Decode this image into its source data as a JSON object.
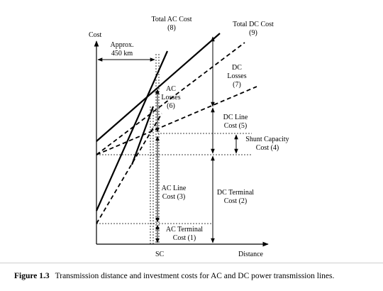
{
  "figure": {
    "labels": {
      "cost_axis": "Cost",
      "distance_axis": "Distance",
      "sc": "SC",
      "approx_line1": "Approx.",
      "approx_line2": "450 km",
      "total_ac_1": "Total AC Cost",
      "total_ac_2": "(8)",
      "total_dc_1": "Total DC Cost",
      "total_dc_2": "(9)",
      "dc_losses_1": "DC",
      "dc_losses_2": "Losses",
      "dc_losses_3": "(7)",
      "ac_losses_1": "AC",
      "ac_losses_2": "Losses",
      "ac_losses_3": "(6)",
      "dc_line_1": "DC Line",
      "dc_line_2": "Cost (5)",
      "shunt_1": "Shunt Capacity",
      "shunt_2": "Cost (4)",
      "ac_line_1": "AC Line",
      "ac_line_2": "Cost (3)",
      "dc_terminal_1": "DC Terminal",
      "dc_terminal_2": "Cost  (2)",
      "ac_terminal_1": "AC Terminal",
      "ac_terminal_2": "Cost (1)"
    }
  },
  "caption": {
    "number": "Figure 1.3",
    "text": "Transmission distance and investment costs for AC and DC power transmission lines."
  }
}
